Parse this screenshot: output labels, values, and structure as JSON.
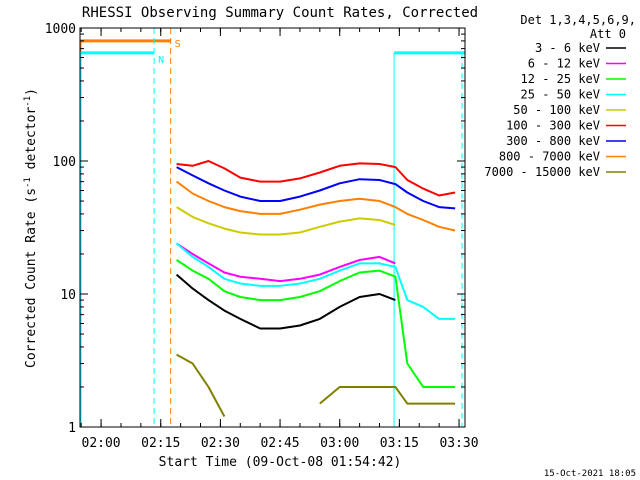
{
  "chart_data": {
    "type": "line",
    "title": "RHESSI Observing Summary Count Rates, Corrected",
    "xlabel": "Start Time (09-Oct-08 01:54:42)",
    "ylabel_parts": [
      "Corrected Count Rate (s",
      "-1",
      " detector",
      "-1",
      ")"
    ],
    "yscale": "log",
    "ylim": [
      1,
      1000
    ],
    "xlim": [
      "01:54:42",
      "03:31:30"
    ],
    "xticks": [
      "02:00",
      "02:15",
      "02:30",
      "02:45",
      "03:00",
      "03:15",
      "03:30"
    ],
    "yticks": [
      "1",
      "10",
      "100",
      "1000"
    ],
    "legend_header": [
      "Det 1,3,4,5,6,9,",
      "Att 0"
    ],
    "legend_position": "right",
    "timestamp": "15-Oct-2021 18:05",
    "x": [
      "02:19",
      "02:23",
      "02:27",
      "02:31",
      "02:35",
      "02:40",
      "02:45",
      "02:50",
      "02:55",
      "03:00",
      "03:05",
      "03:10",
      "03:14",
      "03:17",
      "03:21",
      "03:25",
      "03:29"
    ],
    "series": [
      {
        "name": "3 - 6 keV",
        "color": "#000000",
        "values": [
          14,
          11,
          9,
          7.5,
          6.5,
          5.5,
          5.5,
          5.8,
          6.5,
          8,
          9.5,
          10,
          9,
          null,
          null,
          null,
          null
        ]
      },
      {
        "name": "6 - 12 keV",
        "color": "#ff00ff",
        "values": [
          24,
          20,
          17,
          14.5,
          13.5,
          13,
          12.5,
          13,
          14,
          16,
          18,
          19,
          17,
          null,
          null,
          null,
          null
        ]
      },
      {
        "name": "12 - 25 keV",
        "color": "#00ff00",
        "values": [
          18,
          15,
          13,
          10.5,
          9.5,
          9,
          9,
          9.5,
          10.5,
          12.5,
          14.5,
          15,
          13.5,
          3,
          2,
          2,
          2
        ]
      },
      {
        "name": "25 - 50 keV",
        "color": "#00ffff",
        "values": [
          24,
          19,
          16,
          13,
          12,
          11.5,
          11.5,
          12,
          13,
          15,
          17,
          17,
          16,
          9,
          8,
          6.5,
          6.5
        ]
      },
      {
        "name": "50 - 100 keV",
        "color": "#cccc00",
        "values": [
          45,
          38,
          34,
          31,
          29,
          28,
          28,
          29,
          32,
          35,
          37,
          36,
          33,
          null,
          null,
          null,
          null
        ]
      },
      {
        "name": "100 - 300 keV",
        "color": "#ff0000",
        "values": [
          95,
          92,
          100,
          88,
          75,
          70,
          70,
          74,
          82,
          92,
          96,
          95,
          90,
          72,
          62,
          55,
          58
        ]
      },
      {
        "name": "300 - 800 keV",
        "color": "#0000ff",
        "values": [
          90,
          78,
          68,
          60,
          54,
          50,
          50,
          54,
          60,
          68,
          73,
          72,
          67,
          58,
          50,
          45,
          44
        ]
      },
      {
        "name": "800 - 7000 keV",
        "color": "#ff8000",
        "values": [
          70,
          57,
          50,
          45,
          42,
          40,
          40,
          43,
          47,
          50,
          52,
          50,
          45,
          40,
          36,
          32,
          30
        ]
      },
      {
        "name": "7000 - 15000 keV",
        "color": "#808000",
        "values": [
          3.5,
          3,
          2,
          1.2,
          null,
          null,
          null,
          null,
          1.5,
          2,
          2,
          2,
          2,
          1.5,
          1.5,
          1.5,
          1.5
        ]
      }
    ],
    "annotations": [
      {
        "label": "S",
        "color": "#ff8000",
        "time": "02:17:30",
        "level": 800,
        "start": "01:54:42"
      },
      {
        "label": "N",
        "color": "#00ffff",
        "time": "02:13:20",
        "level": 650,
        "start": "01:54:42",
        "resume": "03:13:40",
        "resume_end": "03:31:30"
      }
    ]
  }
}
